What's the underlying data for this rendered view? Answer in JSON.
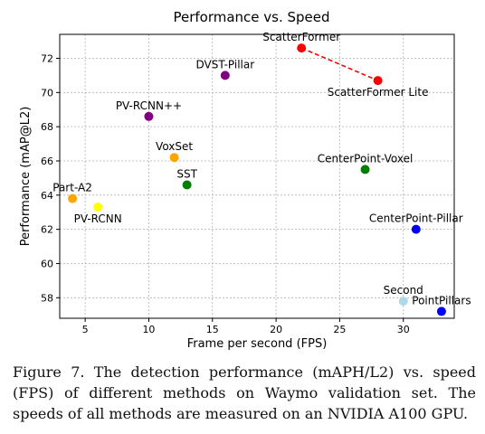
{
  "chart_data": {
    "type": "scatter",
    "title": "Performance vs. Speed",
    "xlabel": "Frame per second (FPS)",
    "ylabel": "Performance (mAP@L2)",
    "xlim": [
      3,
      34
    ],
    "ylim": [
      56.8,
      73.4
    ],
    "xticks": [
      5,
      10,
      15,
      20,
      25,
      30
    ],
    "yticks": [
      58,
      60,
      62,
      64,
      66,
      68,
      70,
      72
    ],
    "grid": true,
    "points": [
      {
        "name": "ScatterFormer",
        "x": 22,
        "y": 72.6,
        "color": "#ff0000",
        "label_pos": "top"
      },
      {
        "name": "ScatterFormer Lite",
        "x": 28,
        "y": 70.7,
        "color": "#ff0000",
        "label_pos": "bottom"
      },
      {
        "name": "DVST-Pillar",
        "x": 16,
        "y": 71.0,
        "color": "#800080",
        "label_pos": "top"
      },
      {
        "name": "PV-RCNN++",
        "x": 10,
        "y": 68.6,
        "color": "#800080",
        "label_pos": "top"
      },
      {
        "name": "VoxSet",
        "x": 12,
        "y": 66.2,
        "color": "#ffa500",
        "label_pos": "top"
      },
      {
        "name": "SST",
        "x": 13,
        "y": 64.6,
        "color": "#008000",
        "label_pos": "top"
      },
      {
        "name": "CenterPoint-Voxel",
        "x": 27,
        "y": 65.5,
        "color": "#008000",
        "label_pos": "top"
      },
      {
        "name": "Part-A2",
        "x": 4,
        "y": 63.8,
        "color": "#ffa500",
        "label_pos": "top"
      },
      {
        "name": "PV-RCNN",
        "x": 6,
        "y": 63.3,
        "color": "#ffff00",
        "label_pos": "bottom"
      },
      {
        "name": "CenterPoint-Pillar",
        "x": 31,
        "y": 62.0,
        "color": "#0000ff",
        "label_pos": "top"
      },
      {
        "name": "Second",
        "x": 30,
        "y": 57.8,
        "color": "#add8e6",
        "label_pos": "top"
      },
      {
        "name": "PointPillars",
        "x": 33,
        "y": 57.2,
        "color": "#0000ff",
        "label_pos": "top"
      }
    ],
    "connector": {
      "from": "ScatterFormer",
      "to": "ScatterFormer Lite",
      "color": "#ff0000",
      "style": "dashed"
    }
  },
  "caption": "Figure 7. The detection performance (mAPH/L2) vs. speed (FPS) of different methods on Waymo validation set. The speeds of all methods are measured on an NVIDIA A100 GPU."
}
